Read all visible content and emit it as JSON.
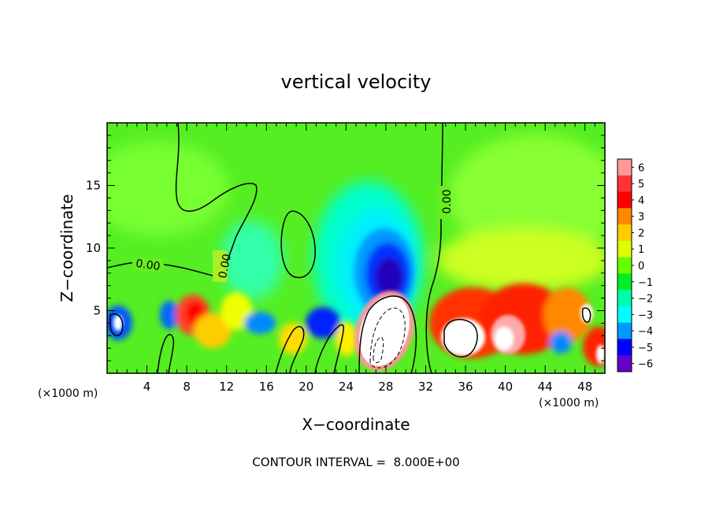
{
  "chart_data": {
    "type": "heatmap",
    "title": "vertical velocity",
    "xlabel": "X−coordinate",
    "ylabel": "Z−coordinate",
    "x_units": "(×1000 m)",
    "xlim": [
      0,
      50
    ],
    "ylim": [
      0,
      20
    ],
    "x_ticks": [
      4,
      8,
      12,
      16,
      20,
      24,
      28,
      32,
      36,
      40,
      44,
      48
    ],
    "x_tick_labels": [
      "4",
      "8",
      "12",
      "16",
      "20",
      "24",
      "28",
      "32",
      "36",
      "40",
      "44",
      "48"
    ],
    "y_ticks": [
      5,
      10,
      15
    ],
    "y_tick_labels": [
      "5",
      "10",
      "15"
    ],
    "colorbar": {
      "levels": [
        6,
        5,
        4,
        3,
        2,
        1,
        0,
        -1,
        -2,
        -3,
        -4,
        -5,
        -6
      ],
      "labels": [
        "6",
        "5",
        "4",
        "3",
        "2",
        "1",
        "0",
        "−1",
        "−2",
        "−3",
        "−4",
        "−5",
        "−6"
      ],
      "colors": [
        "#ff9999",
        "#ff3333",
        "#ff0000",
        "#ff8800",
        "#ffcc00",
        "#ddff00",
        "#66ff00",
        "#00ee22",
        "#00ffaa",
        "#00ffff",
        "#0099ff",
        "#0000ff",
        "#6600cc"
      ]
    },
    "contour_labels": [
      "0.00",
      "0.00",
      "0.00"
    ],
    "contour_interval_text": "CONTOUR INTERVAL =  8.000E+00",
    "features": [
      {
        "kind": "updraft",
        "x": 28,
        "z": 3,
        "value": 8
      },
      {
        "kind": "updraft",
        "x": 36,
        "z": 3,
        "value": 7
      },
      {
        "kind": "updraft",
        "x": 41,
        "z": 3,
        "value": 7
      },
      {
        "kind": "updraft",
        "x": 48,
        "z": 2,
        "value": 6
      },
      {
        "kind": "updraft",
        "x": 8,
        "z": 4,
        "value": 4
      },
      {
        "kind": "updraft",
        "x": 18,
        "z": 3,
        "value": 2
      },
      {
        "kind": "downdraft",
        "x": 28,
        "z": 8.5,
        "value": -6
      },
      {
        "kind": "downdraft",
        "x": 22,
        "z": 4,
        "value": -5
      },
      {
        "kind": "downdraft",
        "x": 1,
        "z": 4,
        "value": -4
      },
      {
        "kind": "downdraft",
        "x": 6,
        "z": 4.5,
        "value": -4
      },
      {
        "kind": "downdraft",
        "x": 15,
        "z": 4,
        "value": -3
      }
    ]
  }
}
